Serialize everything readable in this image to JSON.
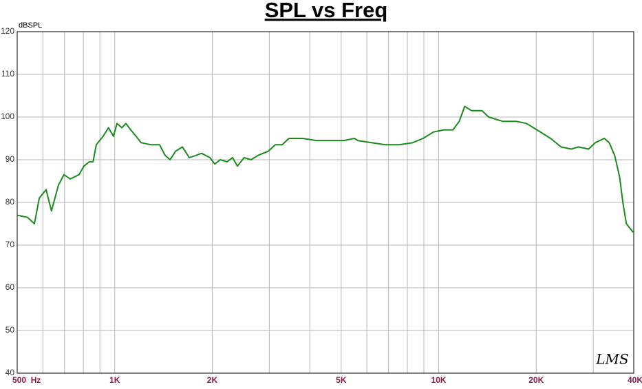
{
  "chart_data": {
    "type": "line",
    "title": "SPL vs Freq",
    "y_label": "dBSPL",
    "watermark": "LMS",
    "x_scale": "log",
    "grid": true,
    "xlim": [
      500,
      40000
    ],
    "xticks": [
      {
        "value": 500,
        "label": "500  Hz"
      },
      {
        "value": 1000,
        "label": "1K"
      },
      {
        "value": 2000,
        "label": "2K"
      },
      {
        "value": 5000,
        "label": "5K"
      },
      {
        "value": 10000,
        "label": "10K"
      },
      {
        "value": 20000,
        "label": "20K"
      },
      {
        "value": 40000,
        "label": "40K"
      }
    ],
    "xgrid": [
      600,
      700,
      800,
      900,
      3000,
      4000,
      6000,
      7000,
      8000,
      9000,
      30000
    ],
    "ylim": [
      40,
      120
    ],
    "yticks": [
      40,
      50,
      60,
      70,
      80,
      90,
      100,
      110,
      120
    ],
    "series": [
      {
        "color": "#1a8a1a",
        "x": [
          500,
          538,
          565,
          585,
          614,
          638,
          670,
          697,
          729,
          776,
          803,
          835,
          857,
          877,
          921,
          957,
          991,
          1016,
          1052,
          1083,
          1120,
          1164,
          1205,
          1296,
          1376,
          1431,
          1482,
          1541,
          1618,
          1698,
          1781,
          1853,
          1966,
          2036,
          2117,
          2221,
          2311,
          2391,
          2510,
          2635,
          2766,
          2977,
          3131,
          3287,
          3451,
          3800,
          4193,
          4620,
          5104,
          5493,
          5624,
          6208,
          6840,
          7549,
          8320,
          8952,
          9640,
          10380,
          11070,
          11570,
          12030,
          12630,
          13590,
          14270,
          15740,
          17340,
          18670,
          20100,
          22150,
          23850,
          25680,
          26950,
          29010,
          30450,
          32460,
          33600,
          34940,
          36160,
          37020,
          37960,
          39820
        ],
        "values": [
          77,
          76.5,
          75,
          81,
          83,
          78,
          84,
          86.5,
          85.5,
          86.5,
          88.5,
          89.5,
          89.5,
          93.5,
          95.5,
          97.5,
          95.5,
          98.5,
          97.5,
          98.5,
          97,
          95.5,
          94,
          93.5,
          93.5,
          91,
          90,
          92,
          93,
          90.5,
          91,
          91.5,
          90.5,
          89,
          90,
          89.5,
          90.5,
          88.5,
          90.5,
          90,
          91,
          92,
          93.5,
          93.5,
          95,
          95,
          94.5,
          94.5,
          94.5,
          95,
          94.5,
          94,
          93.5,
          93.5,
          94,
          95,
          96.5,
          97,
          97,
          99,
          102.5,
          101.5,
          101.5,
          100,
          99,
          99,
          98.5,
          97,
          95,
          93,
          92.5,
          93,
          92.5,
          94,
          95,
          94,
          91,
          86,
          80,
          75,
          73
        ]
      }
    ]
  }
}
